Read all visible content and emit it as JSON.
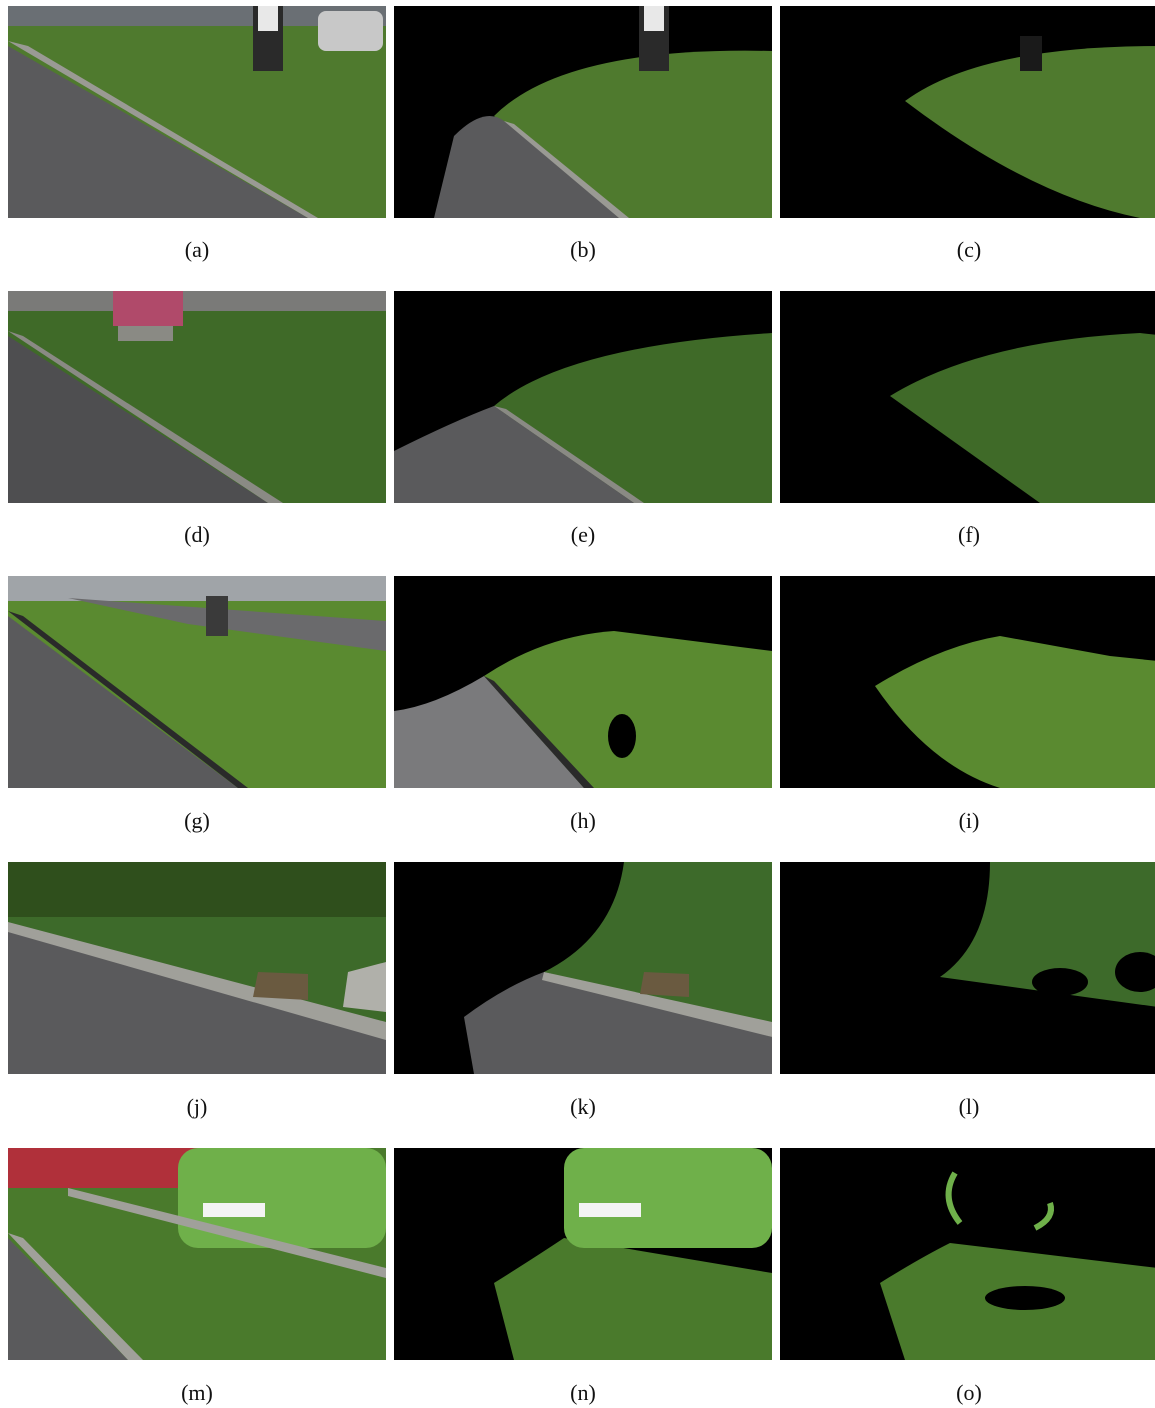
{
  "figure": {
    "panels": [
      {
        "label": "(a)"
      },
      {
        "label": "(b)"
      },
      {
        "label": "(c)"
      },
      {
        "label": "(d)"
      },
      {
        "label": "(e)"
      },
      {
        "label": "(f)"
      },
      {
        "label": "(g)"
      },
      {
        "label": "(h)"
      },
      {
        "label": "(i)"
      },
      {
        "label": "(j)"
      },
      {
        "label": "(k)"
      },
      {
        "label": "(l)"
      },
      {
        "label": "(m)"
      },
      {
        "label": "(n)"
      },
      {
        "label": "(o)"
      }
    ],
    "colors": {
      "grass": "#4f7a2e",
      "grass_dark": "#2f4f1c",
      "asphalt": "#5a5a5c",
      "curb": "#9a9a94",
      "mask_black": "#000000",
      "car_green": "#6fb04a"
    }
  }
}
